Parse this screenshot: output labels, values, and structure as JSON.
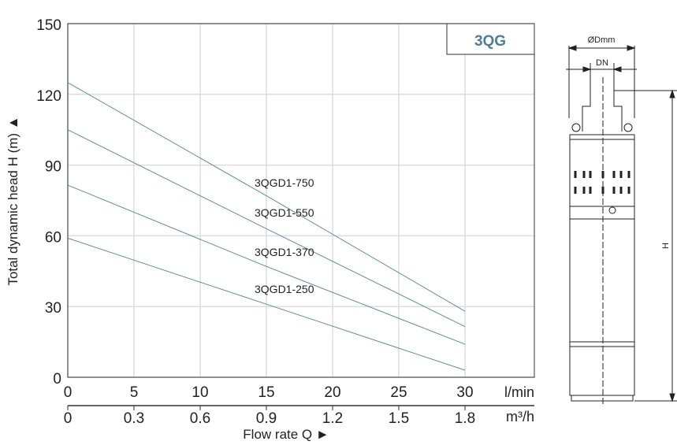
{
  "chart_data": {
    "type": "line",
    "title": "3QG",
    "xlabel": "Flow rate Q ►",
    "ylabel": "Total dynamic head H (m) ▲",
    "x_unit": "l/min",
    "x2_unit": "m³/h",
    "xlim": [
      0,
      30
    ],
    "ylim": [
      0,
      150
    ],
    "grid": true,
    "x_ticks": [
      "0",
      "5",
      "10",
      "15",
      "20",
      "25",
      "30"
    ],
    "x2_ticks": [
      "0",
      "0.3",
      "0.6",
      "0.9",
      "1.2",
      "1.5",
      "1.8"
    ],
    "y_ticks": [
      "0",
      "30",
      "60",
      "90",
      "120",
      "150"
    ],
    "x": [
      0,
      15,
      30
    ],
    "series": [
      {
        "name": "3QGD1-750",
        "values": [
          125,
          77,
          28
        ]
      },
      {
        "name": "3QGD1-550",
        "values": [
          105,
          63,
          21.5
        ]
      },
      {
        "name": "3QGD1-370",
        "values": [
          81.5,
          47,
          14
        ]
      },
      {
        "name": "3QGD1-250",
        "values": [
          59,
          31,
          3
        ]
      }
    ],
    "line_color": "#5b8ea3"
  },
  "drawing": {
    "diameter_label": "ØDmm",
    "dn_label": "DN",
    "height_label": "H"
  }
}
